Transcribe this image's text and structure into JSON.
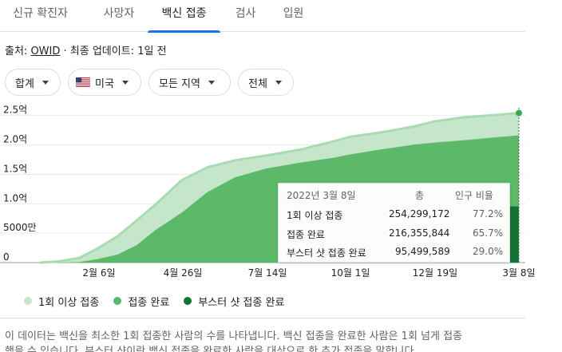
{
  "tabs": [
    {
      "label": "신규 확진자",
      "active": false
    },
    {
      "label": "사망자",
      "active": false
    },
    {
      "label": "백신 접종",
      "active": true
    },
    {
      "label": "검사",
      "active": false
    },
    {
      "label": "입원",
      "active": false
    }
  ],
  "source": {
    "prefix": "출처:",
    "link": "OWID",
    "updated": "· 최종 업데이트: 1일 전"
  },
  "filters": [
    {
      "label": "합계",
      "icon": "chevron-down-icon"
    },
    {
      "label": "미국",
      "icon": "us-flag-icon"
    },
    {
      "label": "모든 지역",
      "icon": "chevron-down-icon"
    },
    {
      "label": "전체",
      "icon": "chevron-down-icon"
    }
  ],
  "colors": {
    "light": "#c5e6cb",
    "light_line": "#a8dbb0",
    "medium": "#5cb96a",
    "dark": "#137333",
    "accent": "#1a73e8"
  },
  "tooltip": {
    "date": "2022년 3월 8일",
    "col_total": "총",
    "col_pct": "인구 비율",
    "rows": [
      {
        "label": "1회 이상 접종",
        "value": "254,299,172",
        "pct": "77.2%"
      },
      {
        "label": "접종 완료",
        "value": "216,355,844",
        "pct": "65.7%"
      },
      {
        "label": "부스터 샷 접종 완료",
        "value": "95,499,589",
        "pct": "29.0%"
      }
    ]
  },
  "chart_data": {
    "type": "area",
    "y_ticks": [
      "0",
      "5000만",
      "1.0억",
      "1.5억",
      "2.0억",
      "2.5억"
    ],
    "x_ticks": [
      "2월 6일",
      "4월 26일",
      "7월 14일",
      "10월 1일",
      "12월 19일",
      "3월 8일"
    ],
    "ylim": [
      0,
      270000000
    ],
    "y_unit": "count",
    "legend_position": "bottom",
    "grid": "horizontal",
    "x_dates": [
      "2020-12-14",
      "2021-01-01",
      "2021-01-20",
      "2021-02-06",
      "2021-02-25",
      "2021-03-15",
      "2021-04-01",
      "2021-04-26",
      "2021-05-20",
      "2021-06-15",
      "2021-07-14",
      "2021-08-15",
      "2021-09-15",
      "2021-10-01",
      "2021-11-01",
      "2021-12-01",
      "2021-12-19",
      "2022-01-15",
      "2022-02-15",
      "2022-03-08"
    ],
    "series": [
      {
        "name": "1회 이상 접종",
        "color": "#c5e6cb",
        "values": [
          0,
          2000000,
          8000000,
          24000000,
          45000000,
          72000000,
          98000000,
          140000000,
          162000000,
          174000000,
          182000000,
          192000000,
          206000000,
          214000000,
          222000000,
          232000000,
          240000000,
          247000000,
          251000000,
          254299172
        ]
      },
      {
        "name": "접종 완료",
        "color": "#5cb96a",
        "values": [
          0,
          0,
          1000000,
          6000000,
          14000000,
          30000000,
          55000000,
          85000000,
          120000000,
          145000000,
          160000000,
          170000000,
          178000000,
          184000000,
          193000000,
          201000000,
          204000000,
          208000000,
          213000000,
          216355844
        ]
      },
      {
        "name": "부스터 샷 접종 완료",
        "color": "#137333",
        "values": [
          0,
          0,
          0,
          0,
          0,
          0,
          0,
          0,
          0,
          0,
          0,
          0,
          0,
          0,
          0,
          0,
          0,
          0,
          0,
          95499589
        ]
      }
    ]
  },
  "description": {
    "line1": "이 데이터는 백신을 최소한 1회 접종한 사람의 수를 나타냅니다. 백신 접종을 완료한 사람은 1회 넘게 접종",
    "line2": "했을 수 있습니다. 부스터 샷이란 백신 접종을 완료한 사람을 대상으로 한 추가 접종을 말합니다."
  }
}
